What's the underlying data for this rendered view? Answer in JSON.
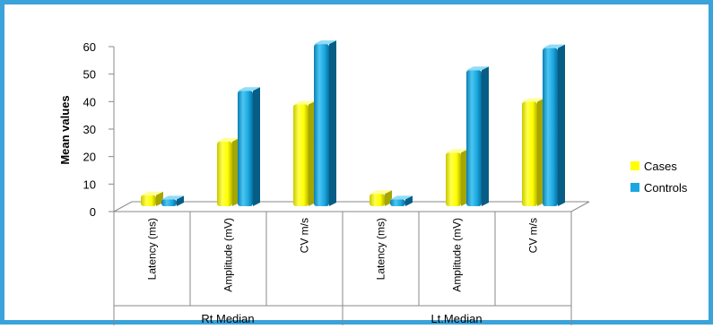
{
  "chart_data": {
    "type": "bar",
    "title": "",
    "ylabel": "Mean values",
    "xlabel": "",
    "ylim": [
      0,
      60
    ],
    "yticks": [
      0,
      10,
      20,
      30,
      40,
      50,
      60
    ],
    "groups": [
      "Rt Median",
      "Lt.Median"
    ],
    "categories": [
      "Latency (ms)",
      "Amplitude (mV)",
      "CV m/s",
      "Latency (ms)",
      "Amplitude (mV)",
      "CV m/s"
    ],
    "series": [
      {
        "name": "Cases",
        "color": "#ffff00",
        "values": [
          4,
          23.5,
          37,
          4.5,
          19.5,
          38
        ]
      },
      {
        "name": "Controls",
        "color": "#1aa7e0",
        "values": [
          2.5,
          42,
          59,
          2.5,
          49.5,
          57.5
        ]
      }
    ],
    "legend_position": "right",
    "grid": false
  }
}
